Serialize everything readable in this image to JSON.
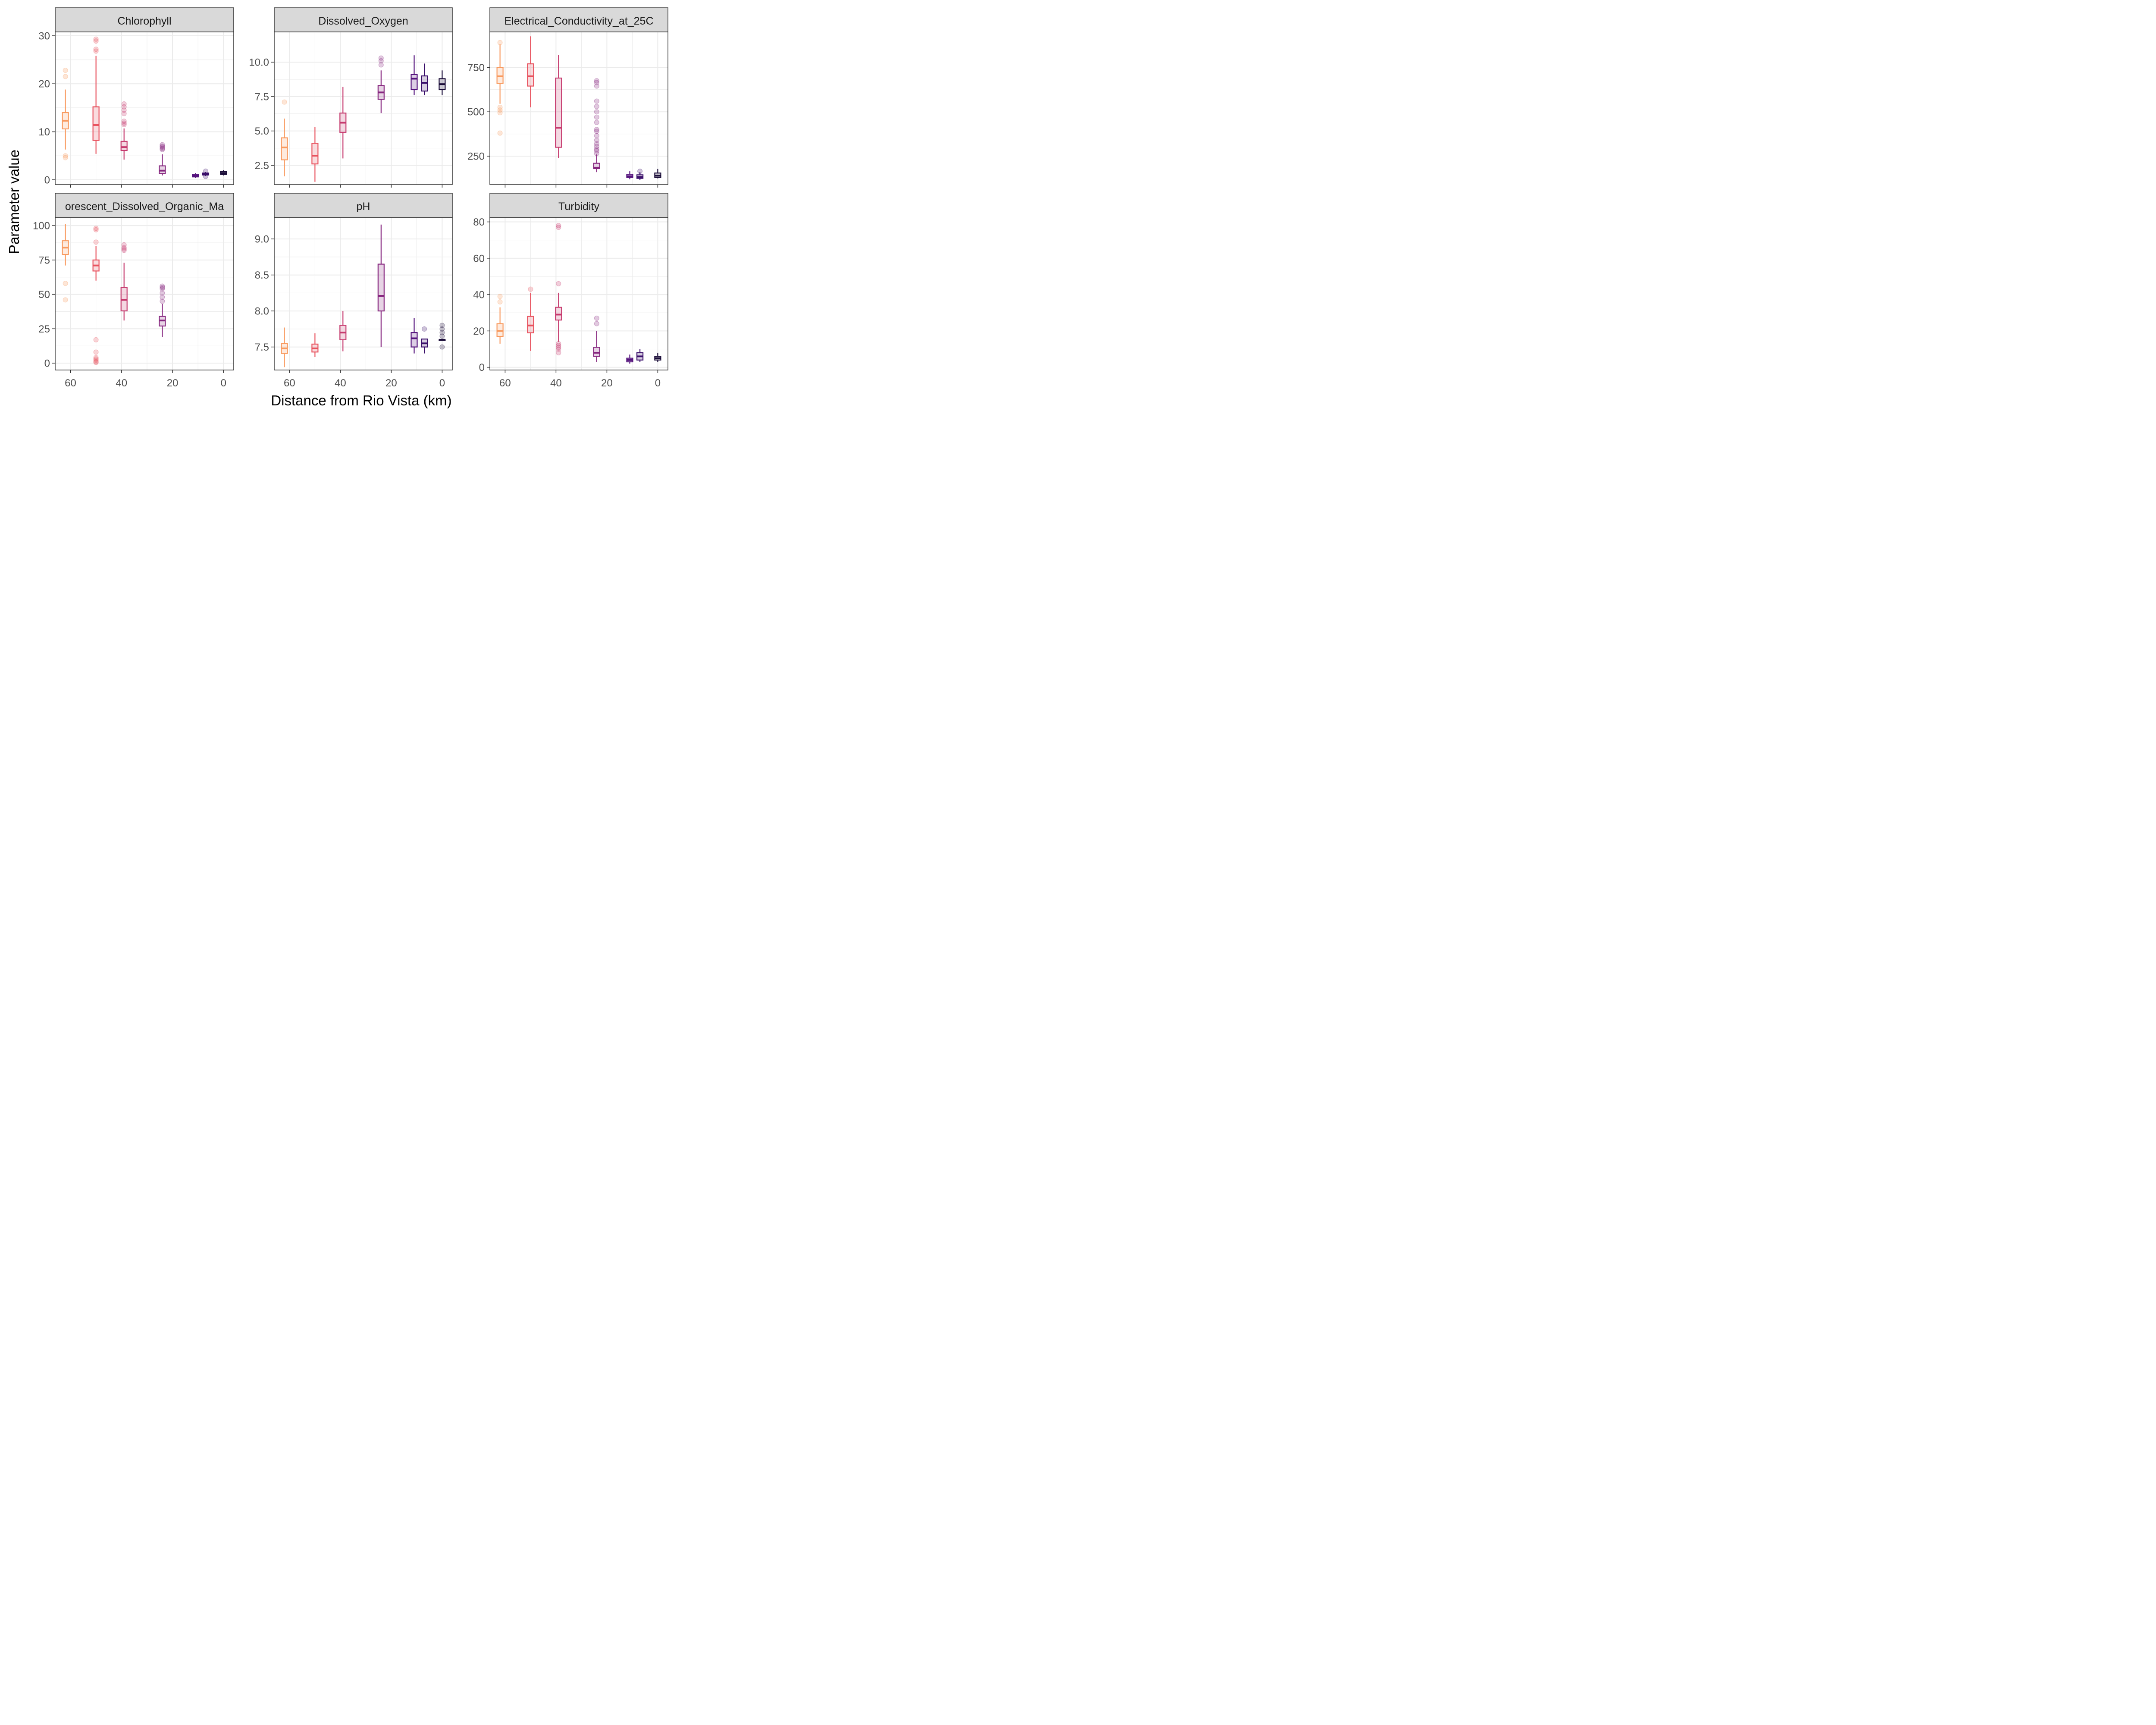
{
  "figure": {
    "xlabel": "Distance from Rio Vista (km)",
    "ylabel": "Parameter value"
  },
  "palette": {
    "62": "#F89A5F",
    "50": "#E8525E",
    "39": "#C63A6E",
    "24": "#86267F",
    "11": "#55137D",
    "7": "#3A0F6A",
    "0": "#1A0C38",
    "panel_strip": "#D9D9D9",
    "grid": "#EBEBEB",
    "border": "#333333"
  },
  "chart_data": [
    {
      "type": "box",
      "title": "Chlorophyll",
      "xlim": [
        66,
        -4
      ],
      "ylim": [
        -1,
        30.8
      ],
      "x_ticks": [
        60,
        40,
        20,
        0
      ],
      "y_ticks": [
        0,
        10,
        20,
        30
      ],
      "y_tick_labels": [
        "0",
        "10",
        "20",
        "30"
      ],
      "boxes": [
        {
          "x": 62,
          "min": 6.3,
          "q1": 10.6,
          "median": 12.3,
          "q3": 14.0,
          "max": 18.8,
          "outliers": [
            22.8,
            21.5,
            5.0,
            4.6
          ]
        },
        {
          "x": 50,
          "min": 5.4,
          "q1": 8.2,
          "median": 11.4,
          "q3": 15.2,
          "max": 25.8,
          "outliers": [
            29.3,
            28.9,
            27.2,
            26.8
          ]
        },
        {
          "x": 39,
          "min": 4.2,
          "q1": 6.1,
          "median": 6.8,
          "q3": 8.0,
          "max": 10.7,
          "outliers": [
            15.8,
            15.2,
            14.5,
            13.8,
            12.2,
            11.8,
            11.5
          ]
        },
        {
          "x": 24,
          "min": 0.9,
          "q1": 1.3,
          "median": 1.9,
          "q3": 2.9,
          "max": 5.3,
          "outliers": [
            7.3,
            7.0,
            6.8,
            6.5,
            6.3
          ]
        },
        {
          "x": 11,
          "min": 0.4,
          "q1": 0.6,
          "median": 0.8,
          "q3": 1.1,
          "max": 1.4,
          "outliers": []
        },
        {
          "x": 7,
          "min": 0.8,
          "q1": 1.0,
          "median": 1.2,
          "q3": 1.4,
          "max": 1.6,
          "outliers": [
            1.8,
            0.7
          ]
        },
        {
          "x": 0,
          "min": 0.9,
          "q1": 1.1,
          "median": 1.4,
          "q3": 1.7,
          "max": 2.0,
          "outliers": []
        }
      ]
    },
    {
      "type": "box",
      "title": "Dissolved_Oxygen",
      "xlim": [
        66,
        -4
      ],
      "ylim": [
        1.1,
        12.2
      ],
      "x_ticks": [
        60,
        40,
        20,
        0
      ],
      "y_ticks": [
        2.5,
        5.0,
        7.5,
        10.0
      ],
      "y_tick_labels": [
        "2.5",
        "5.0",
        "7.5",
        "10.0"
      ],
      "boxes": [
        {
          "x": 62,
          "min": 1.7,
          "q1": 2.9,
          "median": 3.8,
          "q3": 4.5,
          "max": 5.9,
          "outliers": [
            7.1
          ]
        },
        {
          "x": 50,
          "min": 1.3,
          "q1": 2.6,
          "median": 3.2,
          "q3": 4.1,
          "max": 5.3,
          "outliers": []
        },
        {
          "x": 39,
          "min": 3.0,
          "q1": 4.9,
          "median": 5.6,
          "q3": 6.3,
          "max": 8.2,
          "outliers": []
        },
        {
          "x": 24,
          "min": 6.3,
          "q1": 7.3,
          "median": 7.8,
          "q3": 8.3,
          "max": 9.4,
          "outliers": [
            10.3,
            10.1,
            9.8
          ]
        },
        {
          "x": 11,
          "min": 7.6,
          "q1": 8.0,
          "median": 8.8,
          "q3": 9.1,
          "max": 10.5,
          "outliers": []
        },
        {
          "x": 7,
          "min": 7.6,
          "q1": 7.9,
          "median": 8.5,
          "q3": 9.0,
          "max": 9.9,
          "outliers": []
        },
        {
          "x": 0,
          "min": 7.6,
          "q1": 8.0,
          "median": 8.4,
          "q3": 8.8,
          "max": 9.4,
          "outliers": []
        }
      ]
    },
    {
      "type": "box",
      "title": "Electrical_Conductivity_at_25C",
      "xlim": [
        66,
        -4
      ],
      "ylim": [
        90,
        950
      ],
      "x_ticks": [
        60,
        40,
        20,
        0
      ],
      "y_ticks": [
        250,
        500,
        750
      ],
      "y_tick_labels": [
        "250",
        "500",
        "750"
      ],
      "boxes": [
        {
          "x": 62,
          "min": 545,
          "q1": 660,
          "median": 700,
          "q3": 750,
          "max": 880,
          "outliers": [
            890,
            525,
            510,
            495,
            380
          ]
        },
        {
          "x": 50,
          "min": 525,
          "q1": 645,
          "median": 700,
          "q3": 770,
          "max": 925,
          "outliers": []
        },
        {
          "x": 39,
          "min": 240,
          "q1": 300,
          "median": 410,
          "q3": 690,
          "max": 820,
          "outliers": []
        },
        {
          "x": 24,
          "min": 160,
          "q1": 180,
          "median": 185,
          "q3": 210,
          "max": 260,
          "outliers": [
            675,
            665,
            645,
            560,
            530,
            500,
            470,
            440,
            400,
            390,
            365,
            340,
            320,
            305,
            290,
            280,
            265
          ]
        },
        {
          "x": 11,
          "min": 120,
          "q1": 130,
          "median": 137,
          "q3": 148,
          "max": 165,
          "outliers": []
        },
        {
          "x": 7,
          "min": 115,
          "q1": 125,
          "median": 133,
          "q3": 145,
          "max": 160,
          "outliers": [
            165
          ]
        },
        {
          "x": 0,
          "min": 125,
          "q1": 130,
          "median": 140,
          "q3": 155,
          "max": 178,
          "outliers": []
        }
      ]
    },
    {
      "type": "box",
      "title": "Fluorescent_Dissolved_Organic_Matter",
      "strip_label": "orescent_Dissolved_Organic_Ma",
      "xlim": [
        66,
        -4
      ],
      "ylim": [
        -5,
        106
      ],
      "x_ticks": [
        60,
        40,
        20,
        0
      ],
      "y_ticks": [
        0,
        25,
        50,
        75,
        100
      ],
      "y_tick_labels": [
        "0",
        "25",
        "50",
        "75",
        "100"
      ],
      "boxes": [
        {
          "x": 62,
          "min": 71,
          "q1": 79,
          "median": 84,
          "q3": 89,
          "max": 101,
          "outliers": [
            58,
            46
          ]
        },
        {
          "x": 50,
          "min": 60,
          "q1": 67,
          "median": 71,
          "q3": 75,
          "max": 85,
          "outliers": [
            98,
            97,
            88,
            17,
            8,
            4,
            3,
            2,
            1,
            0.5
          ]
        },
        {
          "x": 39,
          "min": 31,
          "q1": 38,
          "median": 46,
          "q3": 55,
          "max": 73,
          "outliers": [
            86,
            84,
            83,
            82
          ]
        },
        {
          "x": 24,
          "min": 19,
          "q1": 27,
          "median": 31,
          "q3": 34,
          "max": 43,
          "outliers": [
            56,
            55,
            54,
            51,
            48,
            45
          ]
        }
      ]
    },
    {
      "type": "box",
      "title": "pH",
      "xlim": [
        66,
        -4
      ],
      "ylim": [
        7.18,
        9.3
      ],
      "x_ticks": [
        60,
        40,
        20,
        0
      ],
      "y_ticks": [
        7.5,
        8.0,
        8.5,
        9.0
      ],
      "y_tick_labels": [
        "7.5",
        "8.0",
        "8.5",
        "9.0"
      ],
      "boxes": [
        {
          "x": 62,
          "min": 7.22,
          "q1": 7.41,
          "median": 7.48,
          "q3": 7.55,
          "max": 7.77,
          "outliers": []
        },
        {
          "x": 50,
          "min": 7.36,
          "q1": 7.43,
          "median": 7.48,
          "q3": 7.54,
          "max": 7.69,
          "outliers": []
        },
        {
          "x": 39,
          "min": 7.44,
          "q1": 7.6,
          "median": 7.7,
          "q3": 7.8,
          "max": 8.0,
          "outliers": []
        },
        {
          "x": 24,
          "min": 7.5,
          "q1": 8.0,
          "median": 8.21,
          "q3": 8.65,
          "max": 9.2,
          "outliers": []
        },
        {
          "x": 11,
          "min": 7.41,
          "q1": 7.5,
          "median": 7.62,
          "q3": 7.7,
          "max": 7.9,
          "outliers": []
        },
        {
          "x": 7,
          "min": 7.41,
          "q1": 7.5,
          "median": 7.55,
          "q3": 7.61,
          "max": 7.61,
          "outliers": [
            7.75
          ]
        },
        {
          "x": 0,
          "min": 7.6,
          "q1": 7.6,
          "median": 7.6,
          "q3": 7.6,
          "max": 7.6,
          "outliers": [
            7.8,
            7.75,
            7.7,
            7.65,
            7.5
          ]
        }
      ]
    },
    {
      "type": "box",
      "title": "Turbidity",
      "xlim": [
        66,
        -4
      ],
      "ylim": [
        -1.5,
        82.5
      ],
      "x_ticks": [
        60,
        40,
        20,
        0
      ],
      "y_ticks": [
        0,
        20,
        40,
        60,
        80
      ],
      "y_tick_labels": [
        "0",
        "20",
        "40",
        "60",
        "80"
      ],
      "boxes": [
        {
          "x": 62,
          "min": 13,
          "q1": 17,
          "median": 20,
          "q3": 24,
          "max": 33,
          "outliers": [
            39,
            36
          ]
        },
        {
          "x": 50,
          "min": 9,
          "q1": 19,
          "median": 23,
          "q3": 28,
          "max": 41,
          "outliers": [
            43
          ]
        },
        {
          "x": 39,
          "min": 14,
          "q1": 26,
          "median": 29,
          "q3": 33,
          "max": 41,
          "outliers": [
            78,
            77,
            46,
            13,
            12,
            11,
            10,
            8
          ]
        },
        {
          "x": 24,
          "min": 3,
          "q1": 6,
          "median": 8,
          "q3": 11,
          "max": 20,
          "outliers": [
            27,
            24
          ]
        },
        {
          "x": 11,
          "min": 2,
          "q1": 3,
          "median": 4,
          "q3": 5,
          "max": 7,
          "outliers": []
        },
        {
          "x": 7,
          "min": 3,
          "q1": 4,
          "median": 6,
          "q3": 8,
          "max": 10,
          "outliers": []
        },
        {
          "x": 0,
          "min": 3,
          "q1": 4,
          "median": 5,
          "q3": 6,
          "max": 8,
          "outliers": []
        }
      ]
    }
  ]
}
